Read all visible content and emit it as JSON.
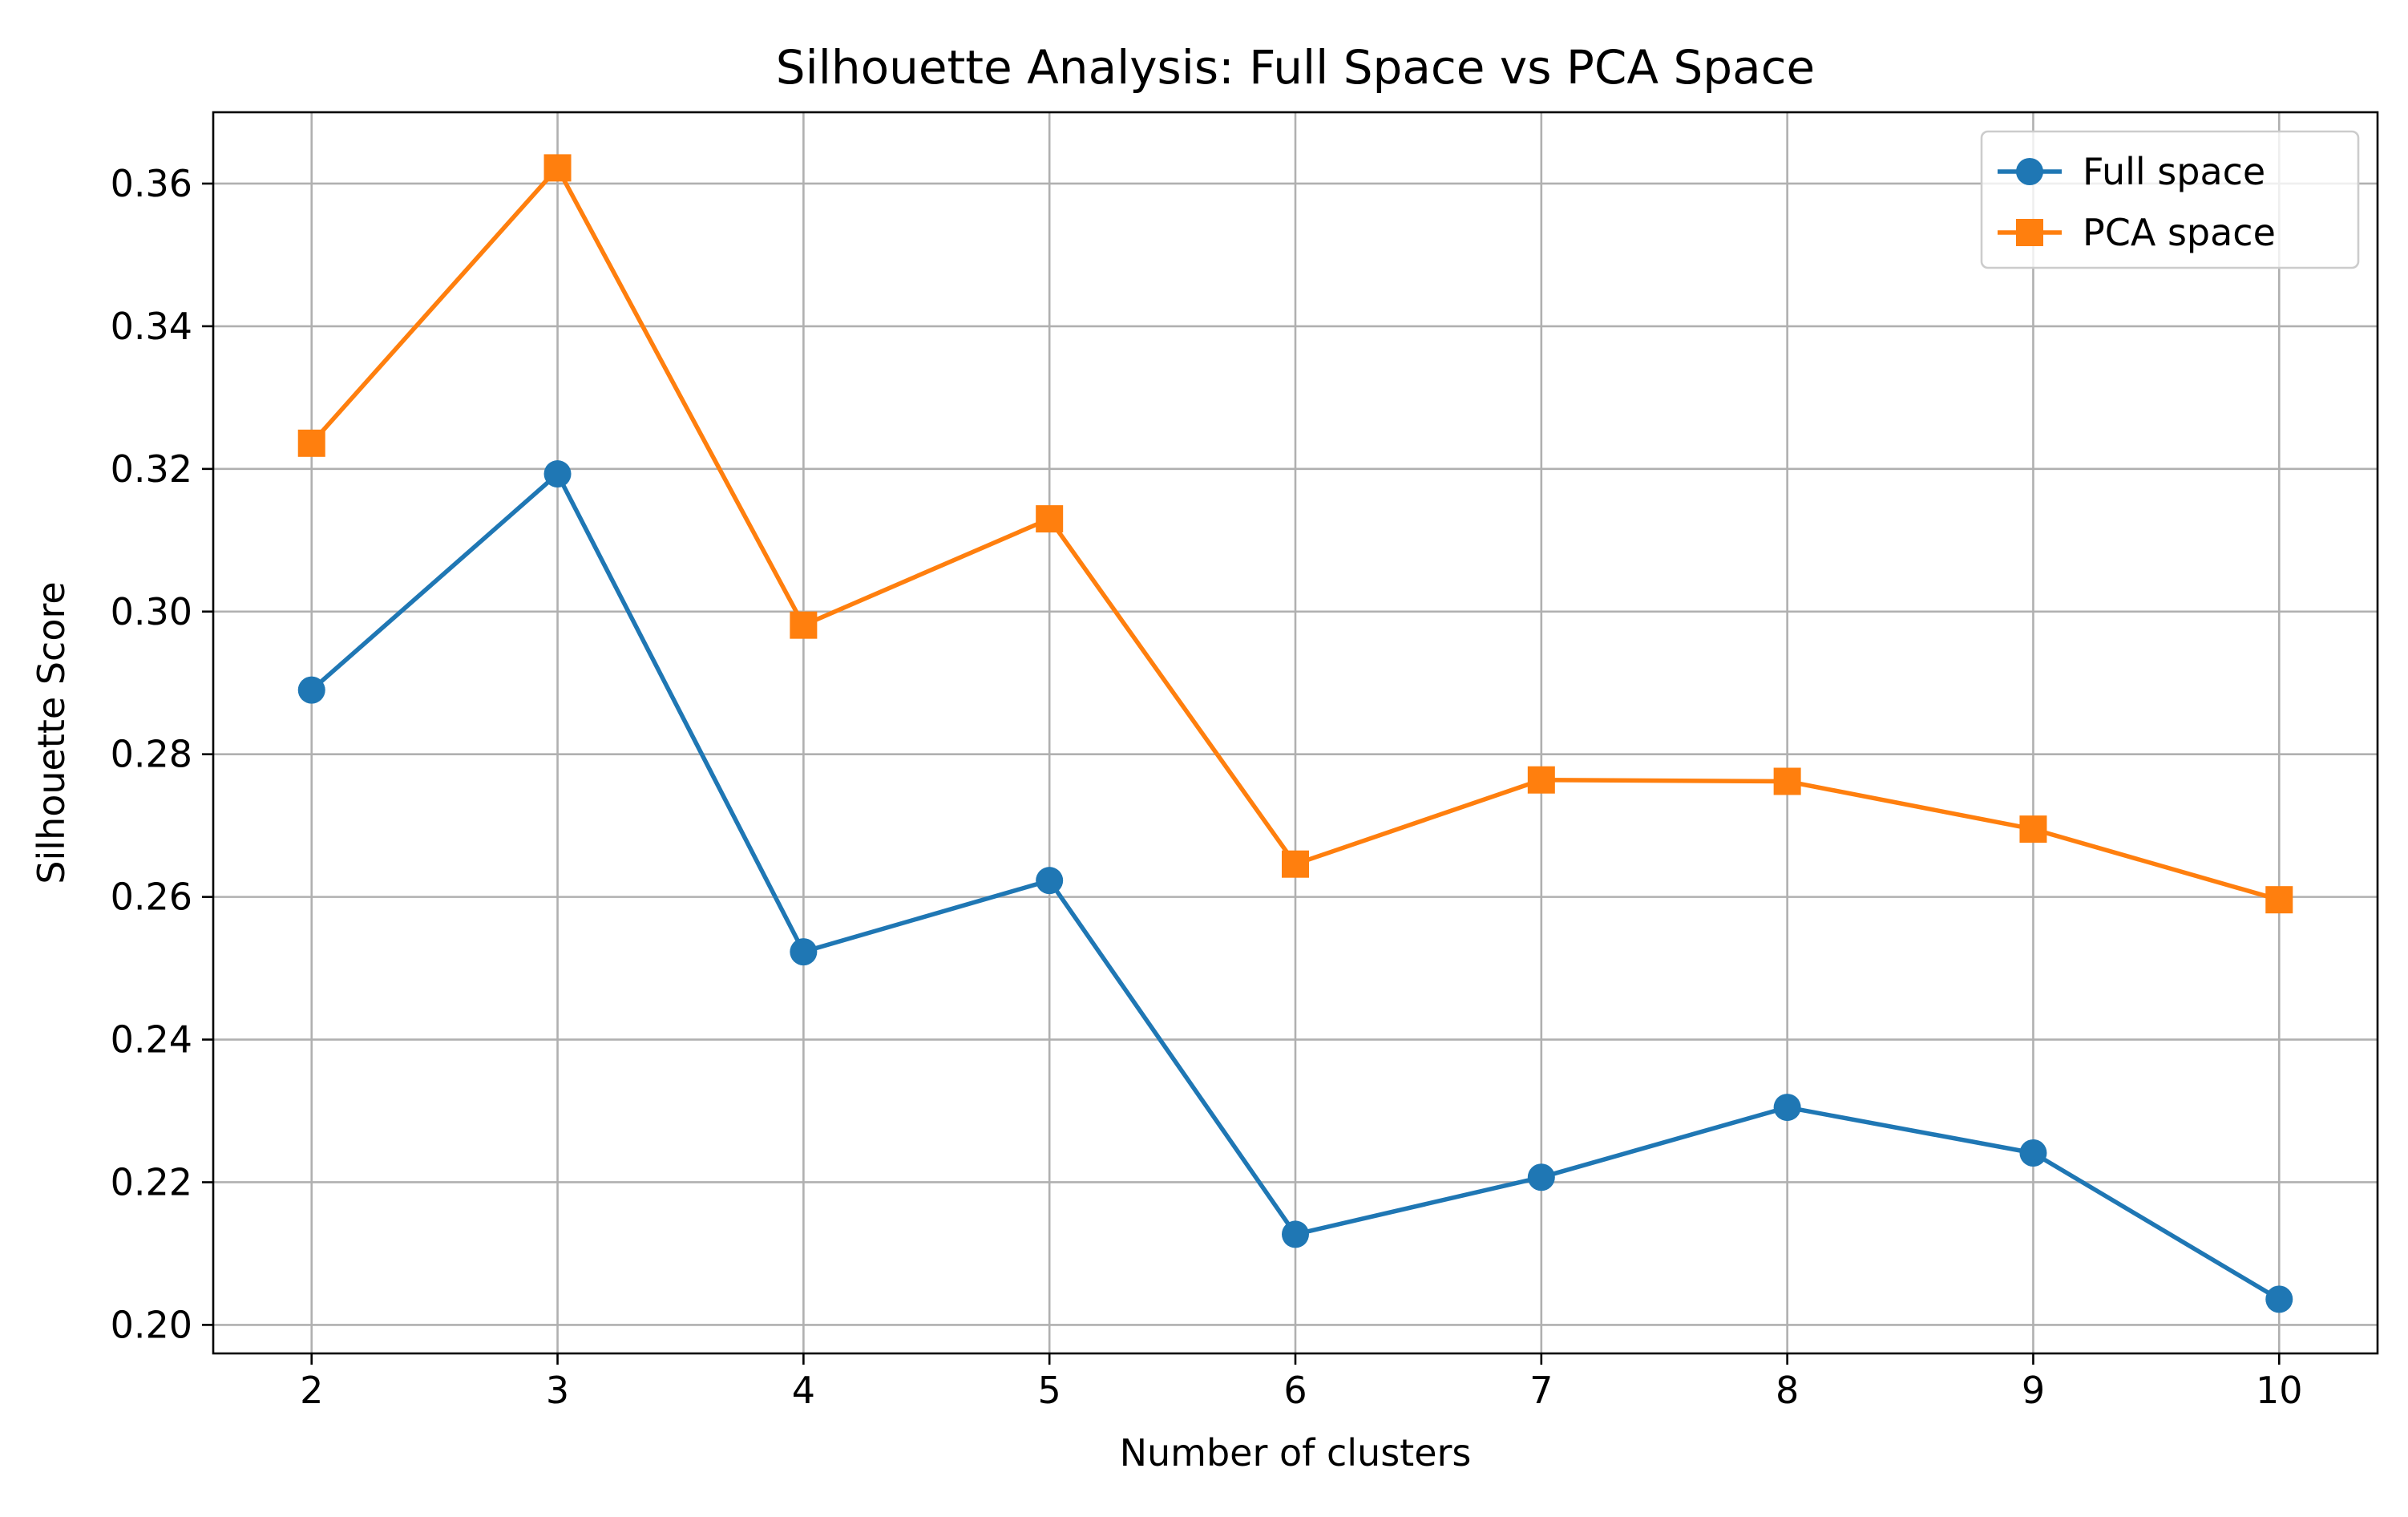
{
  "chart_data": {
    "type": "line",
    "title": "Silhouette Analysis: Full Space vs PCA Space",
    "xlabel": "Number of clusters",
    "ylabel": "Silhouette Score",
    "x": [
      2,
      3,
      4,
      5,
      6,
      7,
      8,
      9,
      10
    ],
    "xlim": [
      1.6,
      10.4
    ],
    "ylim": [
      0.196,
      0.37
    ],
    "xticks": [
      2,
      3,
      4,
      5,
      6,
      7,
      8,
      9,
      10
    ],
    "yticks": [
      0.2,
      0.22,
      0.24,
      0.26,
      0.28,
      0.3,
      0.32,
      0.34,
      0.36
    ],
    "grid": true,
    "legend_position": "top-right",
    "series": [
      {
        "name": "Full space",
        "marker": "circle",
        "color": "#1f77b4",
        "values": [
          0.289,
          0.3193,
          0.2523,
          0.2623,
          0.2127,
          0.2207,
          0.2305,
          0.2241,
          0.2036
        ]
      },
      {
        "name": "PCA space",
        "marker": "square",
        "color": "#ff7f0e",
        "values": [
          0.3236,
          0.3622,
          0.2981,
          0.313,
          0.2646,
          0.2764,
          0.2762,
          0.2695,
          0.2596
        ]
      }
    ]
  }
}
